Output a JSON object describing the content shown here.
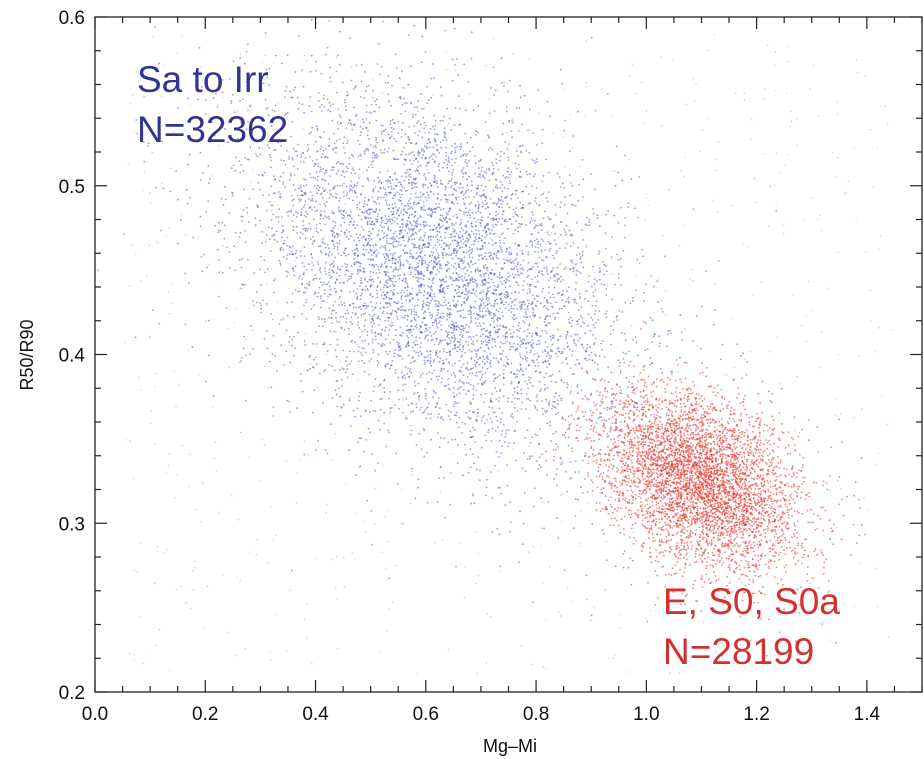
{
  "chart_data": {
    "type": "scatter",
    "title": "",
    "xlabel": "Mg–Mi",
    "ylabel": "R50/R90",
    "xlim": [
      0.0,
      1.5
    ],
    "ylim": [
      0.2,
      0.6
    ],
    "xticks": [
      {
        "value": 0.0,
        "label": "0.0"
      },
      {
        "value": 0.2,
        "label": "0.2"
      },
      {
        "value": 0.4,
        "label": "0.4"
      },
      {
        "value": 0.6,
        "label": "0.6"
      },
      {
        "value": 0.8,
        "label": "0.8"
      },
      {
        "value": 1.0,
        "label": "1.0"
      },
      {
        "value": 1.2,
        "label": "1.2"
      },
      {
        "value": 1.4,
        "label": "1.4"
      }
    ],
    "yticks": [
      {
        "value": 0.2,
        "label": "0.2"
      },
      {
        "value": 0.3,
        "label": "0.3"
      },
      {
        "value": 0.4,
        "label": "0.4"
      },
      {
        "value": 0.5,
        "label": "0.5"
      },
      {
        "value": 0.6,
        "label": "0.6"
      }
    ],
    "grid": false,
    "series": [
      {
        "name": "Sa to Irr",
        "count_label": "N=32362",
        "color": "#4a4ec8",
        "center": [
          0.62,
          0.45
        ],
        "spread": [
          0.17,
          0.05
        ],
        "slope": -0.12
      },
      {
        "name": "E, S0, S0a",
        "count_label": "N=28199",
        "color": "#e8342c",
        "center": [
          1.1,
          0.325
        ],
        "spread": [
          0.09,
          0.025
        ],
        "slope": -0.1
      }
    ],
    "annotations": [
      {
        "series": 0,
        "lines": [
          "Sa to Irr",
          "N=32362"
        ],
        "color": "#2f3590",
        "position": "top-left"
      },
      {
        "series": 1,
        "lines": [
          "E, S0, S0a",
          "N=28199"
        ],
        "color": "#d62f2f",
        "position": "bottom-right"
      }
    ]
  }
}
